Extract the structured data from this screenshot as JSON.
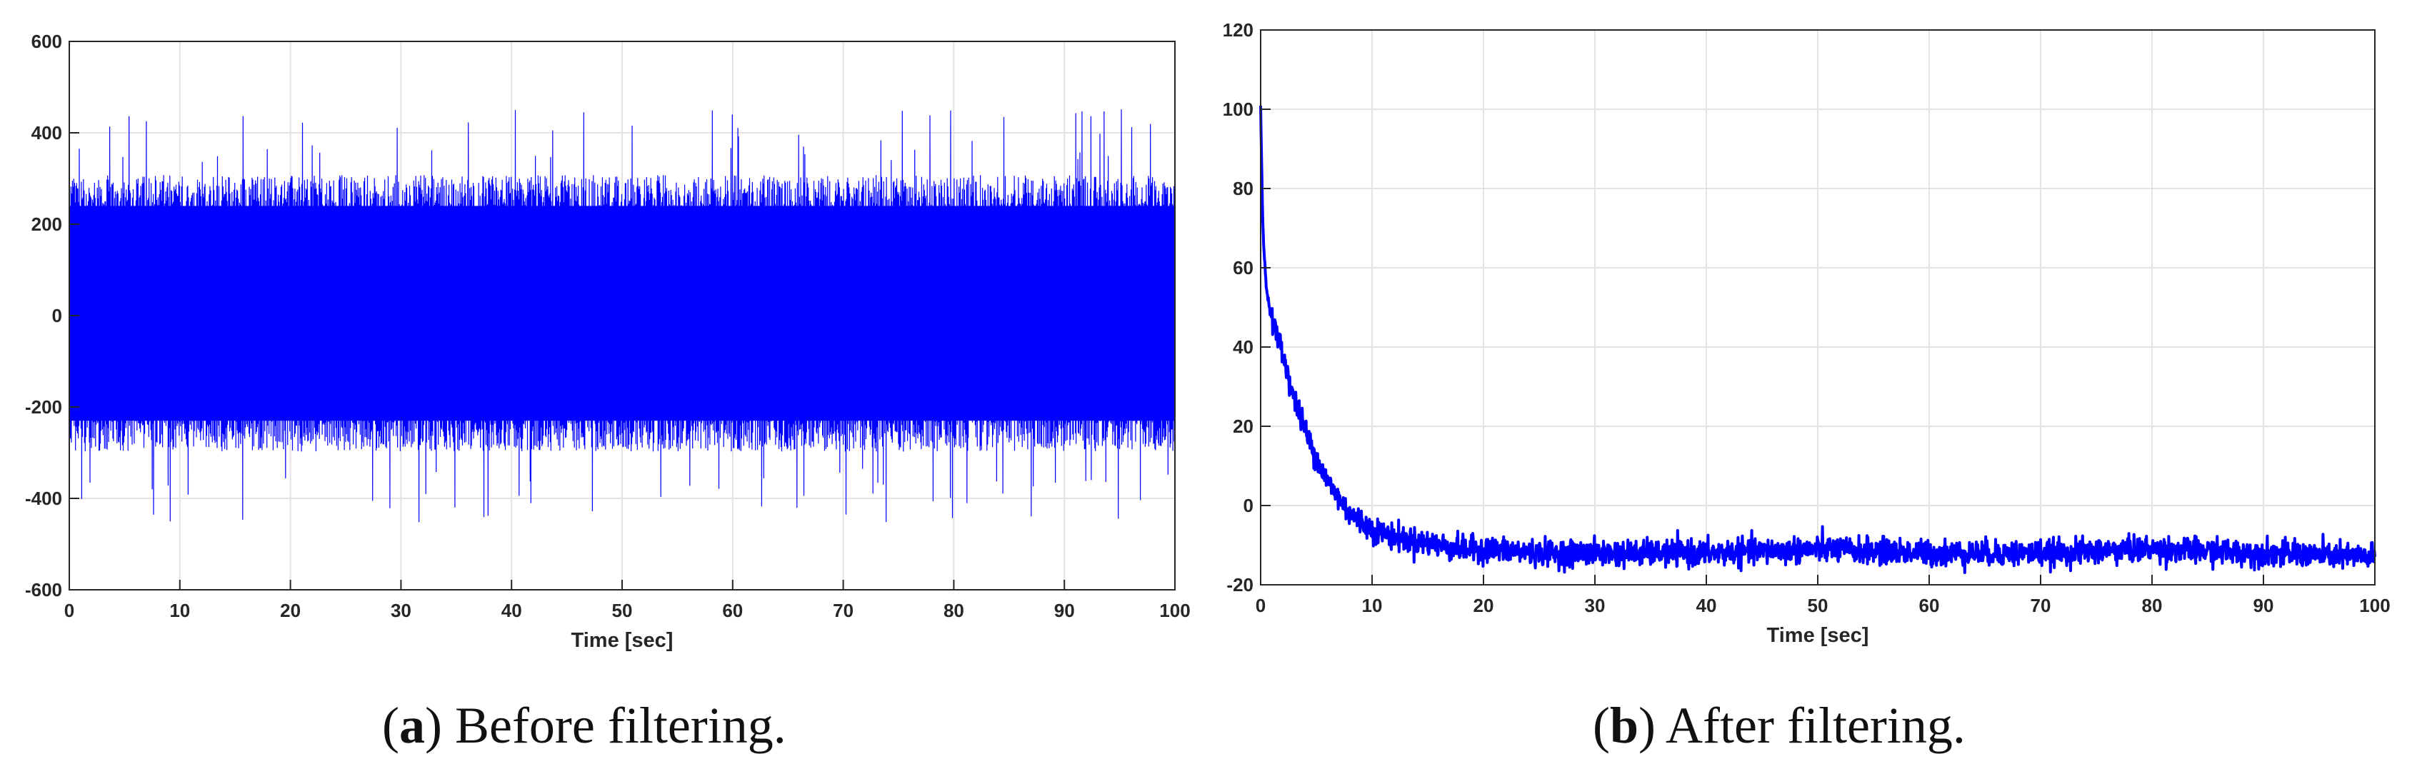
{
  "chart_data": [
    {
      "type": "line",
      "panel": "a",
      "caption_label": "a",
      "caption_text": "Before filtering.",
      "xlabel": "Time [sec]",
      "ylabel": "",
      "xlim": [
        0,
        100
      ],
      "ylim": [
        -600,
        600
      ],
      "xticks": [
        0,
        10,
        20,
        30,
        40,
        50,
        60,
        70,
        80,
        90,
        100
      ],
      "yticks": [
        -600,
        -400,
        -200,
        0,
        200,
        400,
        600
      ],
      "grid": true,
      "legend": "none",
      "line_color": "#0000ff",
      "signal": {
        "description_kind": "noise",
        "mean": 0,
        "typical_band": [
          -270,
          280
        ],
        "peak_max": 480,
        "peak_min": -510
      }
    },
    {
      "type": "line",
      "panel": "b",
      "caption_label": "b",
      "caption_text": "After filtering.",
      "xlabel": "Time [sec]",
      "ylabel": "",
      "xlim": [
        0,
        100
      ],
      "ylim": [
        -20,
        120
      ],
      "xticks": [
        0,
        10,
        20,
        30,
        40,
        50,
        60,
        70,
        80,
        90,
        100
      ],
      "yticks": [
        -20,
        0,
        20,
        40,
        60,
        80,
        100,
        120
      ],
      "grid": true,
      "legend": "none",
      "line_color": "#0000ff",
      "x": [
        0,
        0.2,
        0.5,
        1,
        1.5,
        2,
        3,
        4,
        5,
        6,
        7,
        8,
        9,
        10,
        12,
        14,
        16,
        18,
        20,
        25,
        30,
        40,
        50,
        60,
        70,
        80,
        90,
        100
      ],
      "y": [
        100,
        70,
        55,
        47,
        43,
        38,
        27,
        19,
        12,
        6,
        2,
        -2,
        -4,
        -6,
        -8,
        -9,
        -10,
        -11,
        -11,
        -12,
        -12,
        -12,
        -11,
        -12,
        -12,
        -11,
        -12,
        -13
      ]
    }
  ]
}
